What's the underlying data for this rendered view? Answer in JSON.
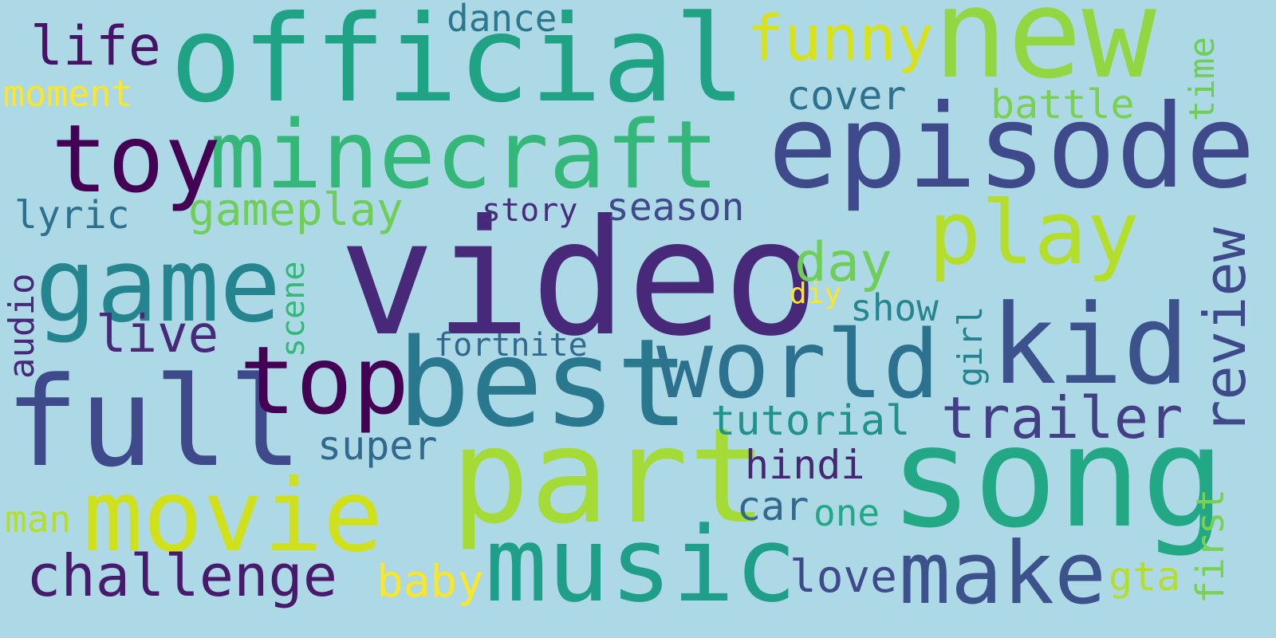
{
  "background_color": "#add8e6",
  "palette": [
    "#440154",
    "#482878",
    "#3e4a89",
    "#31688e",
    "#26828e",
    "#1f9e89",
    "#35b779",
    "#6ece58",
    "#b5de2b",
    "#fde725"
  ],
  "words": {
    "video": "video",
    "official": "official",
    "new": "new",
    "episode": "episode",
    "minecraft": "minecraft",
    "song": "song",
    "part": "part",
    "best": "best",
    "full": "full",
    "game": "game",
    "music": "music",
    "movie": "movie",
    "kid": "kid",
    "world": "world",
    "top": "top",
    "play": "play",
    "toy": "toy",
    "make": "make",
    "funny": "funny",
    "trailer": "trailer",
    "review": "review",
    "challenge": "challenge",
    "life": "life",
    "live": "live",
    "gameplay": "gameplay",
    "season": "season",
    "day": "day",
    "cover": "cover",
    "battle": "battle",
    "dance": "dance",
    "moment": "moment",
    "time": "time",
    "lyric": "lyric",
    "story": "story",
    "audio": "audio",
    "scene": "scene",
    "diy": "diy",
    "show": "show",
    "girl": "girl",
    "fortnite": "fortnite",
    "tutorial": "tutorial",
    "super": "super",
    "hindi": "hindi",
    "car": "car",
    "one": "one",
    "man": "man",
    "first": "first",
    "baby": "baby",
    "love": "love",
    "gta": "gta"
  }
}
